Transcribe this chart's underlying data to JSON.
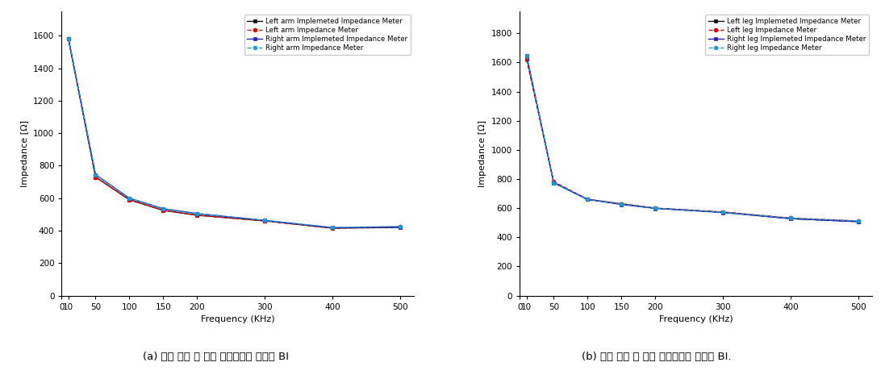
{
  "frequencies": [
    10,
    50,
    100,
    150,
    200,
    300,
    400,
    500
  ],
  "arm": {
    "left_impl": [
      1580,
      730,
      590,
      525,
      495,
      460,
      415,
      420
    ],
    "left_imp": [
      1580,
      730,
      590,
      525,
      495,
      460,
      415,
      425
    ],
    "right_impl": [
      1580,
      745,
      600,
      535,
      505,
      463,
      418,
      422
    ],
    "right_imp": [
      1580,
      745,
      600,
      535,
      505,
      463,
      420,
      426
    ]
  },
  "leg": {
    "left_impl": [
      1640,
      775,
      660,
      630,
      600,
      572,
      528,
      508
    ],
    "left_imp": [
      1620,
      782,
      662,
      630,
      600,
      574,
      532,
      512
    ],
    "right_impl": [
      1648,
      775,
      660,
      625,
      598,
      570,
      528,
      507
    ],
    "right_imp": [
      1648,
      775,
      662,
      627,
      600,
      572,
      532,
      512
    ]
  },
  "arm_labels": [
    "Left arm Implemeted Impedance Meter",
    "Left arm Impedance Meter",
    "Right arm Implemeted Impedance Meter",
    "Right arm Impedance Meter"
  ],
  "leg_labels": [
    "Left leg Implemeted Impedance Meter",
    "Left leg Impedance Meter",
    "Right leg Implemeted Impedance Meter",
    "Right leg Impedance Meter"
  ],
  "colors": [
    "#111111",
    "#dd0000",
    "#2222bb",
    "#2299cc"
  ],
  "linestyles": [
    "-",
    "--",
    "-",
    "--"
  ],
  "markers": [
    "s",
    "o",
    "s",
    "o"
  ],
  "marker_colors": [
    "#111111",
    "#dd0000",
    "#2222bb",
    "#2299cc"
  ],
  "ylabel": "Impedance [Ω]",
  "xlabel": "Frequency (KHz)",
  "yticks_arm": [
    0,
    200,
    400,
    600,
    800,
    1000,
    1200,
    1400,
    1600
  ],
  "yticks_leg": [
    0,
    200,
    400,
    600,
    800,
    1000,
    1200,
    1400,
    1600,
    1800
  ],
  "xticks": [
    0,
    10,
    50,
    100,
    150,
    200,
    300,
    400,
    500
  ],
  "xlim": [
    0,
    520
  ],
  "ylim_arm": [
    0,
    1750
  ],
  "ylim_leg": [
    0,
    1950
  ],
  "caption_a": "(a) 인체 좌측 및 우측 전완부에서 측정한 BI",
  "caption_b": "(b) 인체 좌측 및 우측 슬와부에서 측정한 BI.",
  "bg_color": "#ffffff"
}
